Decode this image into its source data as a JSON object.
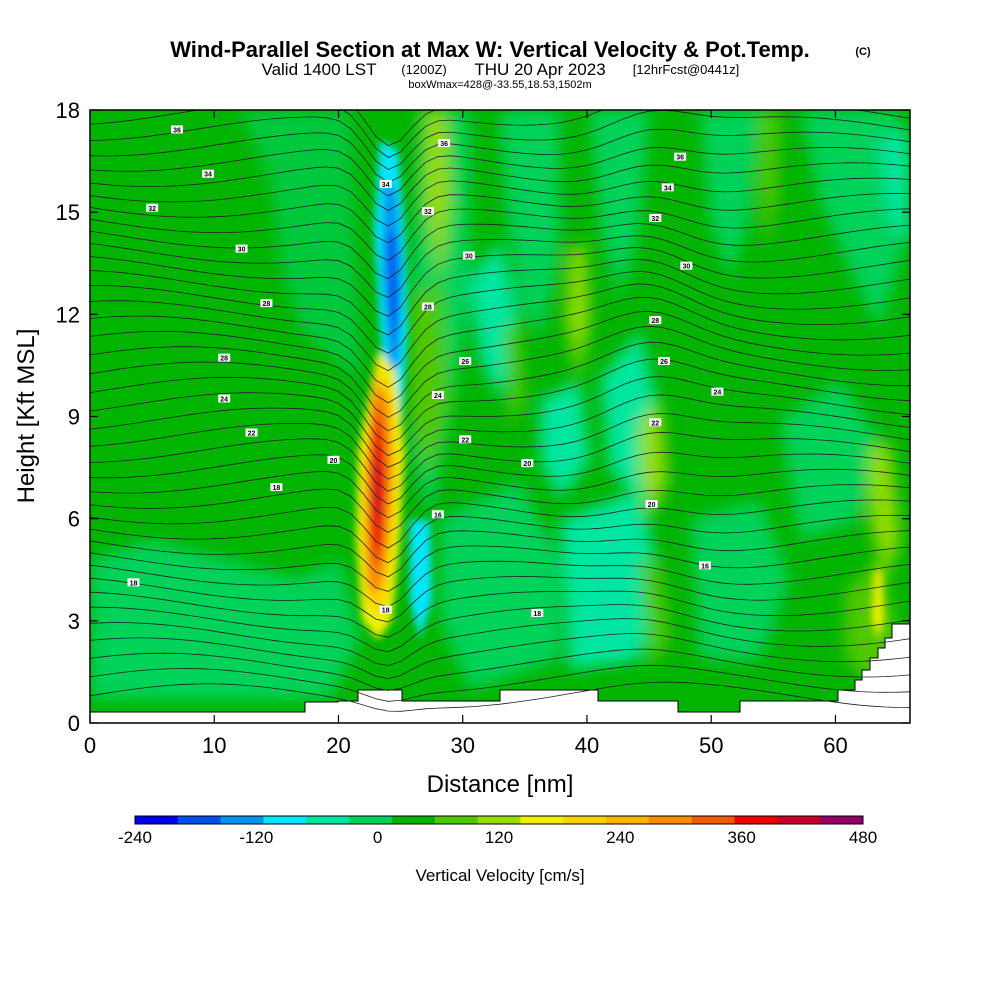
{
  "chart_data": {
    "type": "heatmap",
    "title": "Wind-Parallel Section at Max W: Vertical Velocity & Pot.Temp.",
    "title_mark": "(C)",
    "subtitle": {
      "valid": "Valid 1400 LST",
      "utc": "(1200Z)",
      "date": "THU 20 Apr 2023",
      "forecast": "[12hrFcst@0441z]"
    },
    "box_info": "boxWmax=428@-33.55,18.53,1502m",
    "xlabel": "Distance [nm]",
    "ylabel": "Height [Kft MSL]",
    "xlim": [
      0,
      66
    ],
    "ylim": [
      0,
      18
    ],
    "x_ticks": [
      "0",
      "10",
      "20",
      "30",
      "40",
      "50",
      "60"
    ],
    "y_ticks": [
      "0",
      "3",
      "6",
      "9",
      "12",
      "15",
      "18"
    ],
    "colorbar": {
      "label": "Vertical Velocity [cm/s]",
      "min": -240,
      "max": 480,
      "tick_labels": [
        "-240",
        "-120",
        "0",
        "120",
        "240",
        "360",
        "480"
      ],
      "colors": [
        "#0000f0",
        "#0050f0",
        "#0096f0",
        "#00e6ff",
        "#00e6a0",
        "#00d25a",
        "#00b400",
        "#50c800",
        "#96dc00",
        "#f0f000",
        "#fad200",
        "#fab400",
        "#fa8c00",
        "#f05a00",
        "#f00000",
        "#c80028",
        "#960064"
      ]
    },
    "features": [
      {
        "name": "Updraft core",
        "x": 23,
        "y_range": [
          2.5,
          10.5
        ],
        "peak_w": 428
      },
      {
        "name": "Downdraft",
        "x": 24.5,
        "y_range": [
          4,
          16
        ],
        "min_w": -240
      }
    ],
    "contour_labels": [
      {
        "text": "36",
        "x": 7,
        "y": 17.4
      },
      {
        "text": "34",
        "x": 9.5,
        "y": 16.1
      },
      {
        "text": "32",
        "x": 5,
        "y": 15.1
      },
      {
        "text": "30",
        "x": 12.2,
        "y": 13.9
      },
      {
        "text": "28",
        "x": 14.2,
        "y": 12.3
      },
      {
        "text": "28",
        "x": 10.8,
        "y": 10.7
      },
      {
        "text": "24",
        "x": 10.8,
        "y": 9.5
      },
      {
        "text": "22",
        "x": 13,
        "y": 8.5
      },
      {
        "text": "20",
        "x": 19.6,
        "y": 7.7
      },
      {
        "text": "18",
        "x": 15,
        "y": 6.9
      },
      {
        "text": "18",
        "x": 3.5,
        "y": 4.1
      },
      {
        "text": "18",
        "x": 23.8,
        "y": 3.3
      },
      {
        "text": "36",
        "x": 28.5,
        "y": 17.0
      },
      {
        "text": "34",
        "x": 23.8,
        "y": 15.8
      },
      {
        "text": "32",
        "x": 27.2,
        "y": 15.0
      },
      {
        "text": "30",
        "x": 30.5,
        "y": 13.7
      },
      {
        "text": "28",
        "x": 27.2,
        "y": 12.2
      },
      {
        "text": "26",
        "x": 30.2,
        "y": 10.6
      },
      {
        "text": "24",
        "x": 28,
        "y": 9.6
      },
      {
        "text": "22",
        "x": 30.2,
        "y": 8.3
      },
      {
        "text": "20",
        "x": 35.2,
        "y": 7.6
      },
      {
        "text": "16",
        "x": 28,
        "y": 6.1
      },
      {
        "text": "18",
        "x": 36,
        "y": 3.2
      },
      {
        "text": "36",
        "x": 47.5,
        "y": 16.6
      },
      {
        "text": "34",
        "x": 46.5,
        "y": 15.7
      },
      {
        "text": "32",
        "x": 45.5,
        "y": 14.8
      },
      {
        "text": "30",
        "x": 48,
        "y": 13.4
      },
      {
        "text": "28",
        "x": 45.5,
        "y": 11.8
      },
      {
        "text": "26",
        "x": 46.2,
        "y": 10.6
      },
      {
        "text": "24",
        "x": 50.5,
        "y": 9.7
      },
      {
        "text": "22",
        "x": 45.5,
        "y": 8.8
      },
      {
        "text": "20",
        "x": 45.2,
        "y": 6.4
      },
      {
        "text": "16",
        "x": 49.5,
        "y": 4.6
      }
    ]
  }
}
